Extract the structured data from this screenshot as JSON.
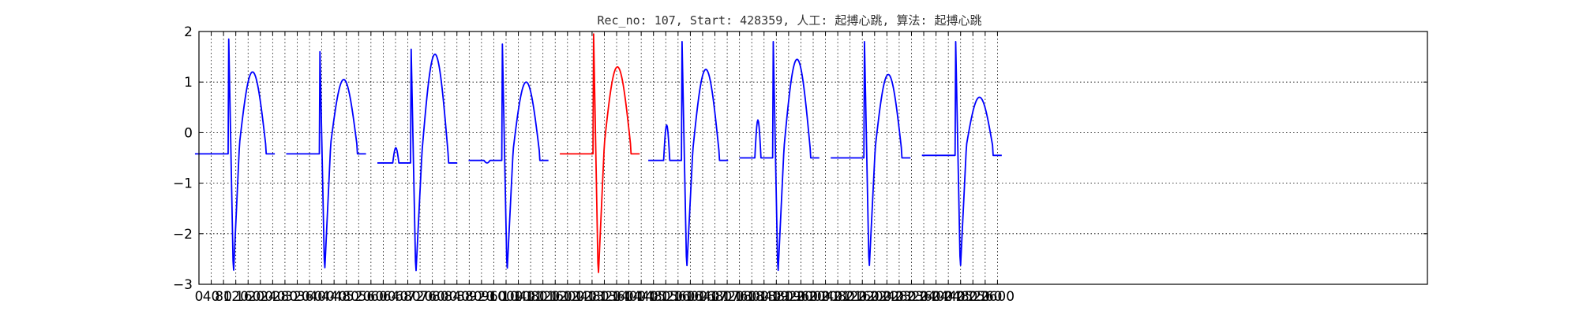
{
  "chart_data": {
    "type": "line",
    "title": "Rec_no: 107, Start: 428359, 人工: 起搏心跳, 算法: 起搏心跳",
    "xlabel": "",
    "ylabel": "",
    "xlim": [
      0,
      4000
    ],
    "ylim": [
      -3,
      2
    ],
    "grid": true,
    "x_ticks": [
      0,
      40,
      80,
      120,
      160,
      200,
      240,
      280,
      320,
      360,
      400,
      440,
      480,
      520,
      560,
      600,
      640,
      680,
      720,
      760,
      800,
      840,
      880,
      920,
      960,
      1000,
      1040,
      1080,
      1120,
      1160,
      1200,
      1240,
      1280,
      1320,
      1360,
      1400,
      1440,
      1480,
      1520,
      1560,
      1600,
      1640,
      1680,
      1720,
      1760,
      1800,
      1840,
      1880,
      1920,
      1960,
      2000,
      2040,
      2080,
      2120,
      2160,
      2200,
      2240,
      2280,
      2320,
      2360,
      2400,
      2440,
      2480,
      2520,
      2560,
      2600
    ],
    "x_tick_labels": [
      "0",
      "40",
      "80",
      "120",
      "160",
      "200",
      "240",
      "280",
      "320",
      "360",
      "400",
      "440",
      "480",
      "520",
      "560",
      "600",
      "640",
      "680",
      "720",
      "760",
      "800",
      "840",
      "880",
      "920",
      "960",
      "1000",
      "1040",
      "1080",
      "1120",
      "1160",
      "1200",
      "1240",
      "1280",
      "1320",
      "1360",
      "1400",
      "1440",
      "1480",
      "1520",
      "1560",
      "1600",
      "1640",
      "1680",
      "1720",
      "1760",
      "1800",
      "1840",
      "1880",
      "1920",
      "1960",
      "2000",
      "2040",
      "2080",
      "2120",
      "2160",
      "2200",
      "2240",
      "2280",
      "2320",
      "2360",
      "2400",
      "2440",
      "2480",
      "2520",
      "2560",
      "2600"
    ],
    "y_ticks": [
      -3,
      -2,
      -1,
      0,
      1,
      2
    ],
    "y_tick_labels": [
      "−3",
      "−2",
      "−1",
      "0",
      "1",
      "2"
    ],
    "series": [
      {
        "color": "#0000ff",
        "beats": [
          {
            "spike_x": 97,
            "peak": 1.85,
            "trough": -2.85,
            "wave": 1.2,
            "baseline": -0.42,
            "p_wave": 0.0
          },
          {
            "spike_x": 394,
            "peak": 1.6,
            "trough": -2.8,
            "wave": 1.05,
            "baseline": -0.42,
            "p_wave": 0.0
          },
          {
            "spike_x": 691,
            "peak": 1.65,
            "trough": -2.85,
            "wave": 1.55,
            "baseline": -0.6,
            "p_wave": -0.3
          },
          {
            "spike_x": 988,
            "peak": 1.75,
            "trough": -2.8,
            "wave": 1.0,
            "baseline": -0.55,
            "p_wave": -0.6
          },
          {
            "spike_x": 1573,
            "peak": 1.8,
            "trough": -2.75,
            "wave": 1.25,
            "baseline": -0.55,
            "p_wave": 0.15
          },
          {
            "spike_x": 1870,
            "peak": 1.8,
            "trough": -2.85,
            "wave": 1.45,
            "baseline": -0.5,
            "p_wave": 0.25
          },
          {
            "spike_x": 2167,
            "peak": 1.8,
            "trough": -2.75,
            "wave": 1.15,
            "baseline": -0.5,
            "p_wave": -0.5
          },
          {
            "spike_x": 2464,
            "peak": 1.8,
            "trough": -2.75,
            "wave": 0.7,
            "baseline": -0.45,
            "p_wave": 0.0
          }
        ]
      },
      {
        "color": "#ff0000",
        "beats": [
          {
            "spike_x": 1285,
            "peak": 1.95,
            "trough": -2.9,
            "wave": 1.3,
            "baseline": -0.42,
            "p_wave": 0.0
          }
        ]
      }
    ]
  }
}
